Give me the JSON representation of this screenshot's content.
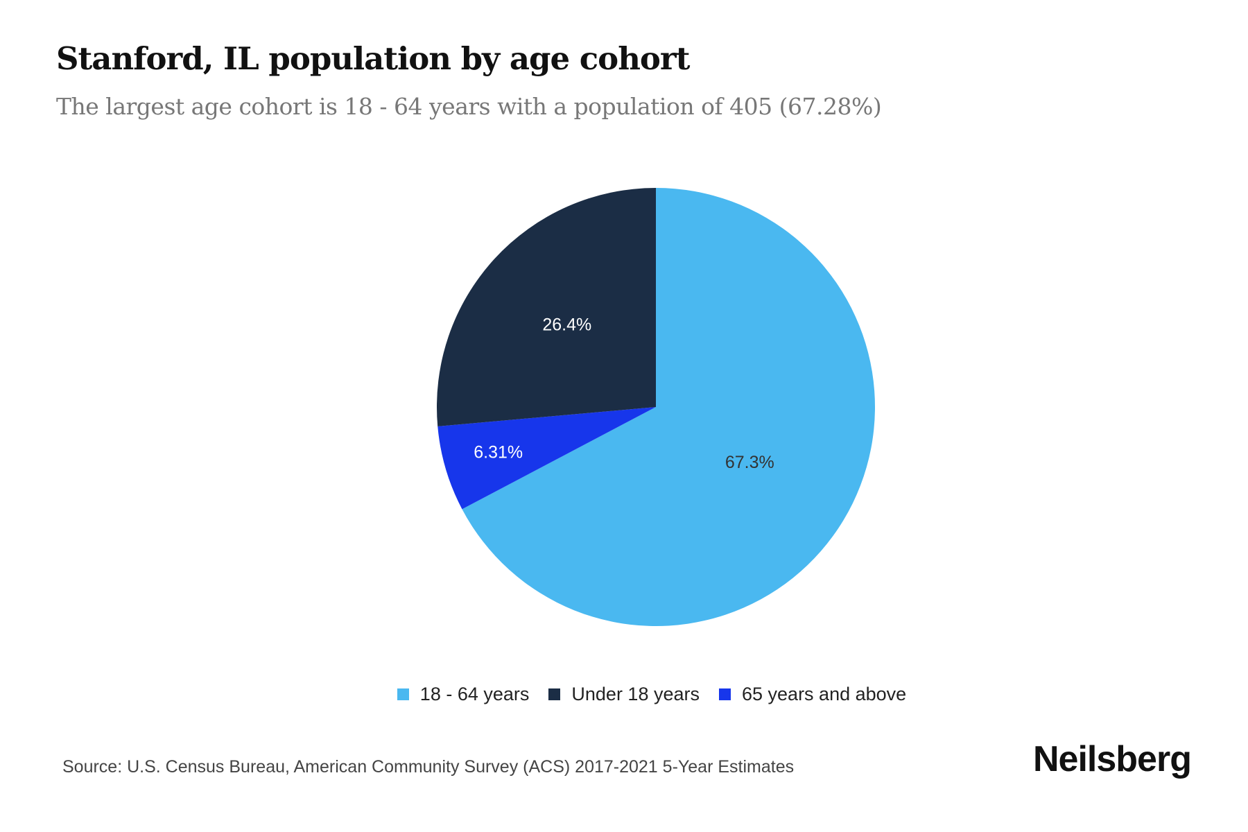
{
  "title": "Stanford, IL population by age cohort",
  "subtitle": "The largest age cohort is 18 - 64 years with a population of 405 (67.28%)",
  "source": "Source: U.S. Census Bureau, American Community Survey (ACS) 2017-2021 5-Year Estimates",
  "brand": "Neilsberg",
  "chart_data": {
    "type": "pie",
    "title": "Stanford, IL population by age cohort",
    "start_angle": "12 o'clock, clockwise",
    "legend_position": "bottom",
    "slices": [
      {
        "name": "18 - 64 years",
        "value": 67.28,
        "label": "67.3%",
        "color": "#4AB8F0",
        "label_color": "#333333"
      },
      {
        "name": "65 years and above",
        "value": 6.31,
        "label": "6.31%",
        "color": "#1736EB",
        "label_color": "#ffffff"
      },
      {
        "name": "Under 18 years",
        "value": 26.41,
        "label": "26.4%",
        "color": "#1B2D45",
        "label_color": "#ffffff"
      }
    ],
    "legend": [
      {
        "name": "18 - 64 years",
        "color": "#4AB8F0"
      },
      {
        "name": "Under 18 years",
        "color": "#1B2D45"
      },
      {
        "name": "65 years and above",
        "color": "#1736EB"
      }
    ]
  }
}
